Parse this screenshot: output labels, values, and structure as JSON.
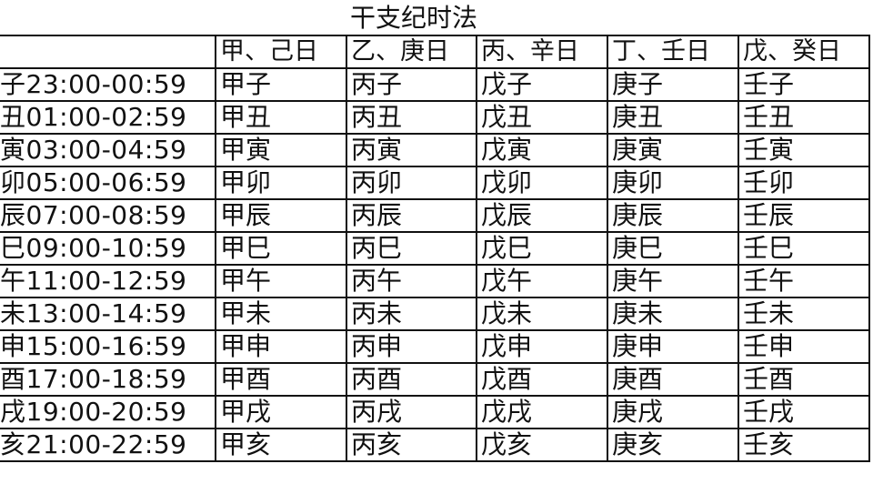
{
  "title": "干支纪时法",
  "columns": [
    "",
    "甲、己日",
    "乙、庚日",
    "丙、辛日",
    "丁、壬日",
    "戊、癸日"
  ],
  "rows": [
    [
      "子23:00-00:59",
      "甲子",
      "丙子",
      "戊子",
      "庚子",
      "壬子"
    ],
    [
      "丑01:00-02:59",
      "甲丑",
      "丙丑",
      "戊丑",
      "庚丑",
      "壬丑"
    ],
    [
      "寅03:00-04:59",
      "甲寅",
      "丙寅",
      "戊寅",
      "庚寅",
      "壬寅"
    ],
    [
      "卯05:00-06:59",
      "甲卯",
      "丙卯",
      "戊卯",
      "庚卯",
      "壬卯"
    ],
    [
      "辰07:00-08:59",
      "甲辰",
      "丙辰",
      "戊辰",
      "庚辰",
      "壬辰"
    ],
    [
      "巳09:00-10:59",
      "甲巳",
      "丙巳",
      "戊巳",
      "庚巳",
      "壬巳"
    ],
    [
      "午11:00-12:59",
      "甲午",
      "丙午",
      "戊午",
      "庚午",
      "壬午"
    ],
    [
      "未13:00-14:59",
      "甲未",
      "丙未",
      "戊未",
      "庚未",
      "壬未"
    ],
    [
      "申15:00-16:59",
      "甲申",
      "丙申",
      "戊申",
      "庚申",
      "壬申"
    ],
    [
      "酉17:00-18:59",
      "甲酉",
      "丙酉",
      "戊酉",
      "庚酉",
      "壬酉"
    ],
    [
      "戌19:00-20:59",
      "甲戌",
      "丙戌",
      "戊戌",
      "庚戌",
      "壬戌"
    ],
    [
      "亥21:00-22:59",
      "甲亥",
      "丙亥",
      "戊亥",
      "庚亥",
      "壬亥"
    ]
  ]
}
